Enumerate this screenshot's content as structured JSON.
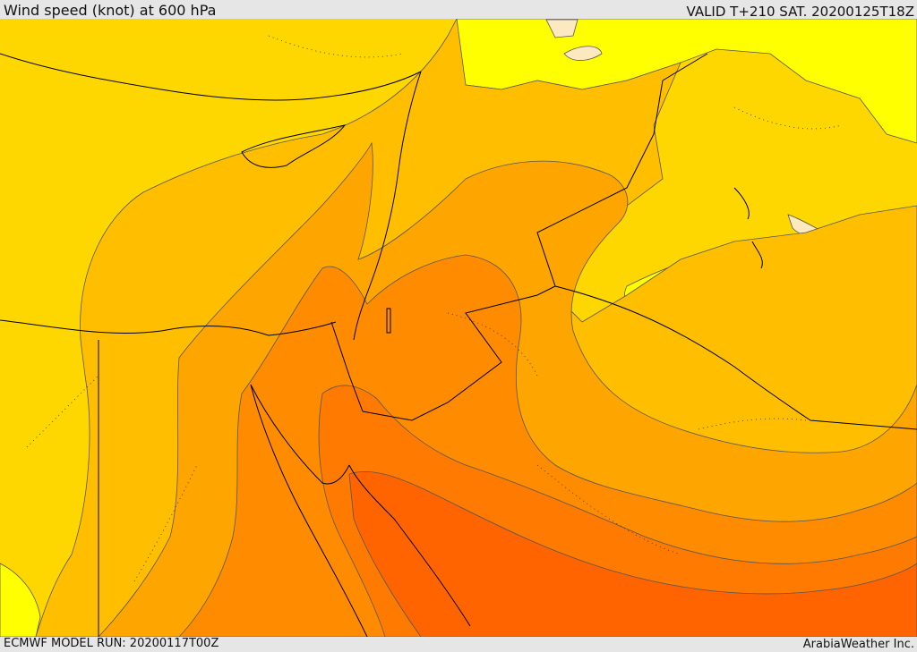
{
  "header": {
    "title": "Wind speed (knot) at 600 hPa",
    "valid": "VALID T+210 SAT. 20200125T18Z"
  },
  "footer": {
    "model_run": "ECMWF MODEL RUN: 20200117T00Z",
    "credit": "ArabiaWeather Inc."
  },
  "map": {
    "field": "wind speed",
    "level": "600 hPa",
    "palette": {
      "lowest": "#fde9c0",
      "low": "#ffff00",
      "light": "#ffd700",
      "medium": "#ffbf00",
      "mid": "#ffa500",
      "strong": "#ff8c00",
      "stronger": "#ff7a00",
      "strongest": "#ff6400"
    },
    "border_color": "#000000",
    "contour_color": "#555555"
  }
}
